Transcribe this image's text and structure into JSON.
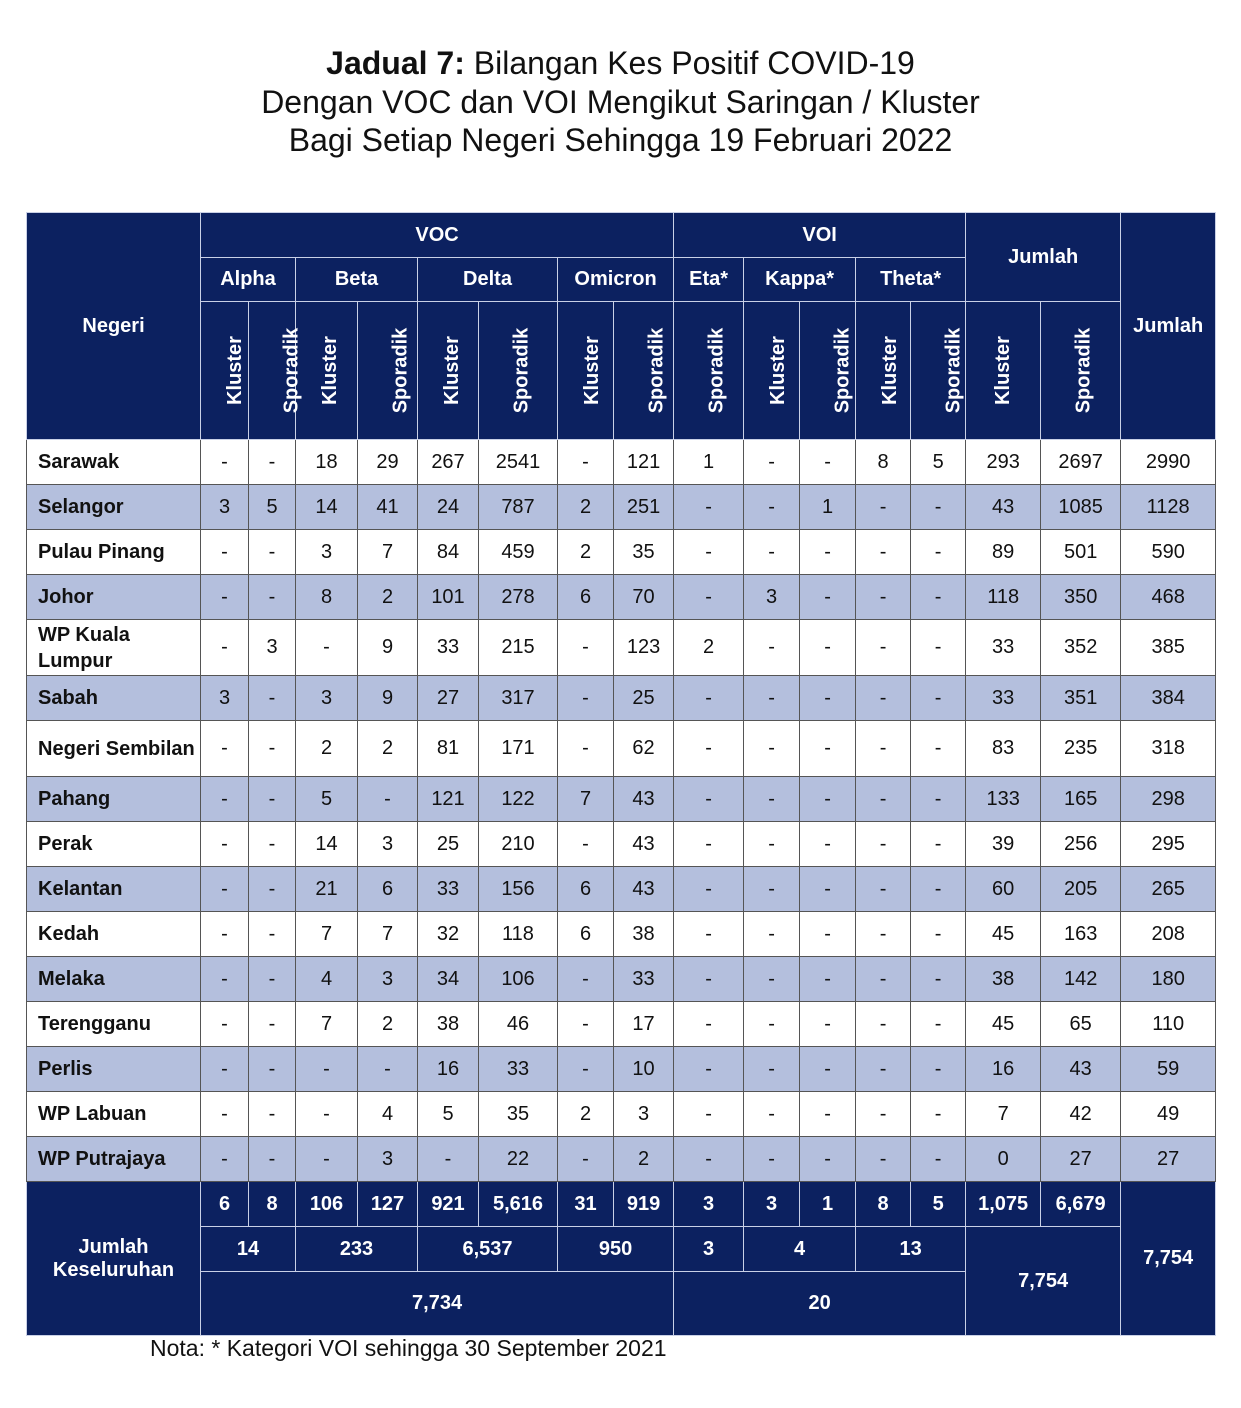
{
  "title": {
    "bold": "Jadual 7:",
    "line1": " Bilangan Kes Positif COVID-19",
    "line2": "Dengan VOC dan VOI Mengikut Saringan / Kluster",
    "line3": "Bagi Setiap Negeri Sehingga 19 Februari 2022"
  },
  "header": {
    "negeri": "Negeri",
    "voc": "VOC",
    "voi": "VOI",
    "jumlah": "Jumlah",
    "jumlah_total": "Jumlah",
    "variants": [
      "Alpha",
      "Beta",
      "Delta",
      "Omicron",
      "Eta*",
      "Kappa*",
      "Theta*"
    ],
    "sub": [
      "Kluster",
      "Sporadik",
      "Kluster",
      "Sporadik",
      "Kluster",
      "Sporadik",
      "Kluster",
      "Sporadik",
      "Sporadik",
      "Kluster",
      "Sporadik",
      "Kluster",
      "Sporadik",
      "Kluster",
      "Sporadik"
    ]
  },
  "rows": [
    {
      "negeri": "Sarawak",
      "values": [
        "-",
        "-",
        "18",
        "29",
        "267",
        "2541",
        "-",
        "121",
        "1",
        "-",
        "-",
        "8",
        "5",
        "293",
        "2697",
        "2990"
      ]
    },
    {
      "negeri": "Selangor",
      "values": [
        "3",
        "5",
        "14",
        "41",
        "24",
        "787",
        "2",
        "251",
        "-",
        "-",
        "1",
        "-",
        "-",
        "43",
        "1085",
        "1128"
      ]
    },
    {
      "negeri": "Pulau Pinang",
      "values": [
        "-",
        "-",
        "3",
        "7",
        "84",
        "459",
        "2",
        "35",
        "-",
        "-",
        "-",
        "-",
        "-",
        "89",
        "501",
        "590"
      ]
    },
    {
      "negeri": "Johor",
      "values": [
        "-",
        "-",
        "8",
        "2",
        "101",
        "278",
        "6",
        "70",
        "-",
        "3",
        "-",
        "-",
        "-",
        "118",
        "350",
        "468"
      ]
    },
    {
      "negeri": "WP Kuala Lumpur",
      "tall": true,
      "values": [
        "-",
        "3",
        "-",
        "9",
        "33",
        "215",
        "-",
        "123",
        "2",
        "-",
        "-",
        "-",
        "-",
        "33",
        "352",
        "385"
      ]
    },
    {
      "negeri": "Sabah",
      "values": [
        "3",
        "-",
        "3",
        "9",
        "27",
        "317",
        "-",
        "25",
        "-",
        "-",
        "-",
        "-",
        "-",
        "33",
        "351",
        "384"
      ]
    },
    {
      "negeri": "Negeri Sembilan",
      "tall": true,
      "values": [
        "-",
        "-",
        "2",
        "2",
        "81",
        "171",
        "-",
        "62",
        "-",
        "-",
        "-",
        "-",
        "-",
        "83",
        "235",
        "318"
      ]
    },
    {
      "negeri": "Pahang",
      "values": [
        "-",
        "-",
        "5",
        "-",
        "121",
        "122",
        "7",
        "43",
        "-",
        "-",
        "-",
        "-",
        "-",
        "133",
        "165",
        "298"
      ]
    },
    {
      "negeri": "Perak",
      "values": [
        "-",
        "-",
        "14",
        "3",
        "25",
        "210",
        "-",
        "43",
        "-",
        "-",
        "-",
        "-",
        "-",
        "39",
        "256",
        "295"
      ]
    },
    {
      "negeri": "Kelantan",
      "values": [
        "-",
        "-",
        "21",
        "6",
        "33",
        "156",
        "6",
        "43",
        "-",
        "-",
        "-",
        "-",
        "-",
        "60",
        "205",
        "265"
      ]
    },
    {
      "negeri": "Kedah",
      "values": [
        "-",
        "-",
        "7",
        "7",
        "32",
        "118",
        "6",
        "38",
        "-",
        "-",
        "-",
        "-",
        "-",
        "45",
        "163",
        "208"
      ]
    },
    {
      "negeri": "Melaka",
      "values": [
        "-",
        "-",
        "4",
        "3",
        "34",
        "106",
        "-",
        "33",
        "-",
        "-",
        "-",
        "-",
        "-",
        "38",
        "142",
        "180"
      ]
    },
    {
      "negeri": "Terengganu",
      "values": [
        "-",
        "-",
        "7",
        "2",
        "38",
        "46",
        "-",
        "17",
        "-",
        "-",
        "-",
        "-",
        "-",
        "45",
        "65",
        "110"
      ]
    },
    {
      "negeri": "Perlis",
      "values": [
        "-",
        "-",
        "-",
        "-",
        "16",
        "33",
        "-",
        "10",
        "-",
        "-",
        "-",
        "-",
        "-",
        "16",
        "43",
        "59"
      ]
    },
    {
      "negeri": "WP Labuan",
      "values": [
        "-",
        "-",
        "-",
        "4",
        "5",
        "35",
        "2",
        "3",
        "-",
        "-",
        "-",
        "-",
        "-",
        "7",
        "42",
        "49"
      ]
    },
    {
      "negeri": "WP Putrajaya",
      "values": [
        "-",
        "-",
        "-",
        "3",
        "-",
        "22",
        "-",
        "2",
        "-",
        "-",
        "-",
        "-",
        "-",
        "0",
        "27",
        "27"
      ]
    }
  ],
  "footer": {
    "label": "Jumlah Keseluruhan",
    "row1": [
      "6",
      "8",
      "106",
      "127",
      "921",
      "5,616",
      "31",
      "919",
      "3",
      "3",
      "1",
      "8",
      "5",
      "1,075",
      "6,679"
    ],
    "total": "7,754",
    "variant_totals": [
      "14",
      "233",
      "6,537",
      "950",
      "3",
      "4",
      "13"
    ],
    "jumlah_total": "7,754",
    "voc_total": "7,734",
    "voi_total": "20"
  },
  "note": "Nota: * Kategori VOI sehingga 30 September 2021"
}
